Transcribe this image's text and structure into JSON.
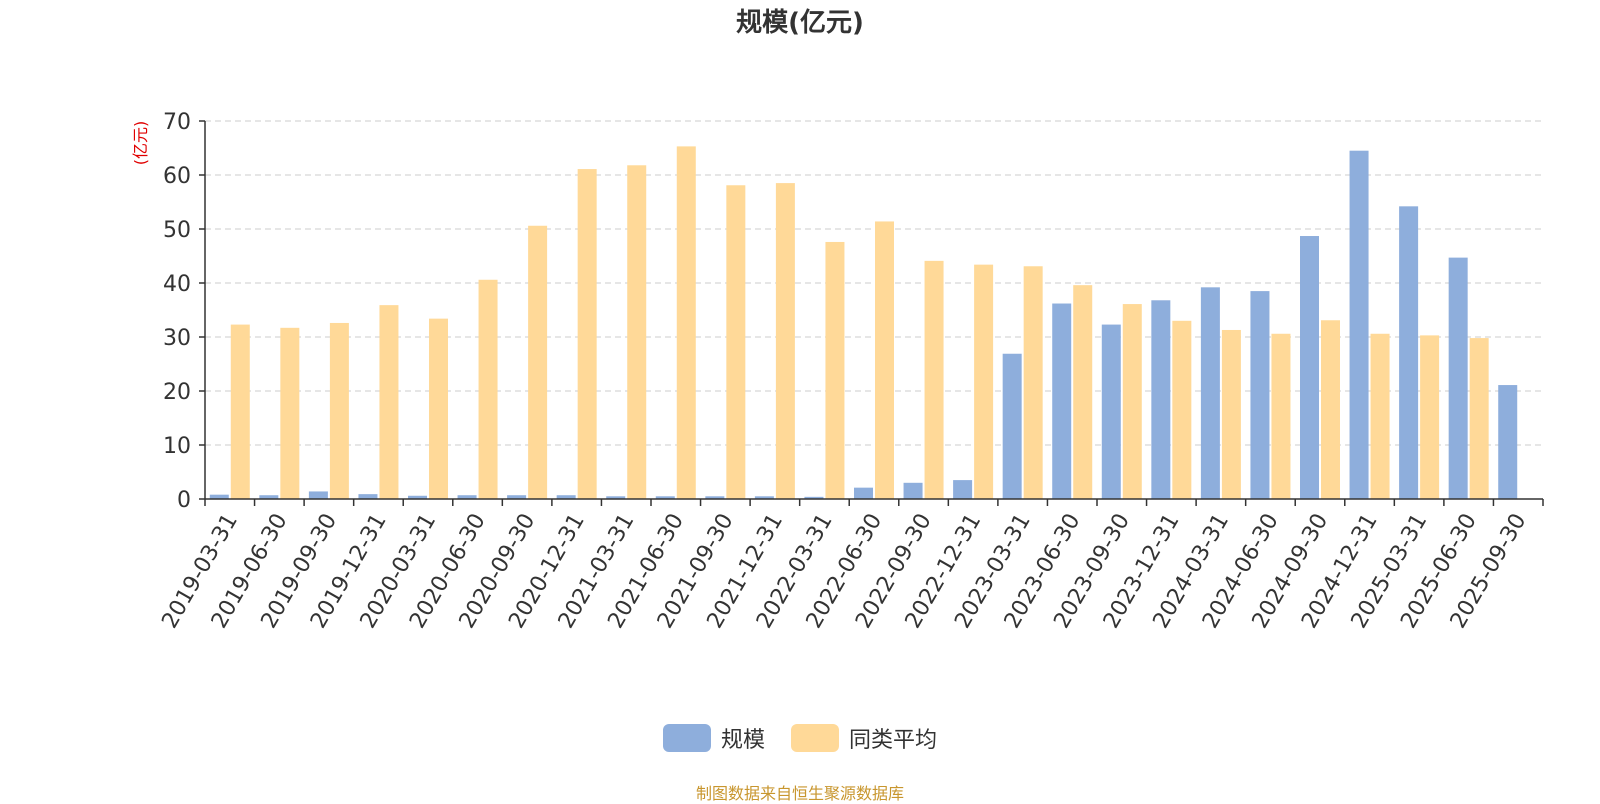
{
  "chart_data": {
    "type": "bar",
    "title": "规模(亿元)",
    "ylabel": "(亿元)",
    "xlabel": "",
    "ylim": [
      0,
      70
    ],
    "yticks": [
      0,
      10,
      20,
      30,
      40,
      50,
      60,
      70
    ],
    "grid": true,
    "legend_position": "bottom-center",
    "categories": [
      "2019-03-31",
      "2019-06-30",
      "2019-09-30",
      "2019-12-31",
      "2020-03-31",
      "2020-06-30",
      "2020-09-30",
      "2020-12-31",
      "2021-03-31",
      "2021-06-30",
      "2021-09-30",
      "2021-12-31",
      "2022-03-31",
      "2022-06-30",
      "2022-09-30",
      "2022-12-31",
      "2023-03-31",
      "2023-06-30",
      "2023-09-30",
      "2023-12-31",
      "2024-03-31",
      "2024-06-30",
      "2024-09-30",
      "2024-12-31",
      "2025-03-31",
      "2025-06-30",
      "2025-09-30"
    ],
    "series": [
      {
        "name": "规模",
        "color": "#8eaedc",
        "values": [
          0.8,
          0.7,
          1.4,
          0.9,
          0.6,
          0.7,
          0.7,
          0.7,
          0.5,
          0.5,
          0.5,
          0.5,
          0.4,
          2.1,
          3.0,
          3.5,
          26.9,
          36.2,
          32.3,
          36.8,
          39.2,
          38.5,
          48.7,
          64.5,
          54.2,
          44.7,
          21.1
        ]
      },
      {
        "name": "同类平均",
        "color": "#ffd998",
        "values": [
          32.3,
          31.7,
          32.6,
          35.9,
          33.4,
          40.6,
          50.6,
          61.1,
          61.8,
          65.3,
          58.1,
          58.5,
          47.6,
          51.4,
          44.1,
          43.4,
          43.1,
          39.6,
          36.1,
          33.0,
          31.3,
          30.6,
          33.1,
          30.6,
          30.3,
          29.8,
          null
        ]
      }
    ]
  },
  "source_note": "制图数据来自恒生聚源数据库"
}
